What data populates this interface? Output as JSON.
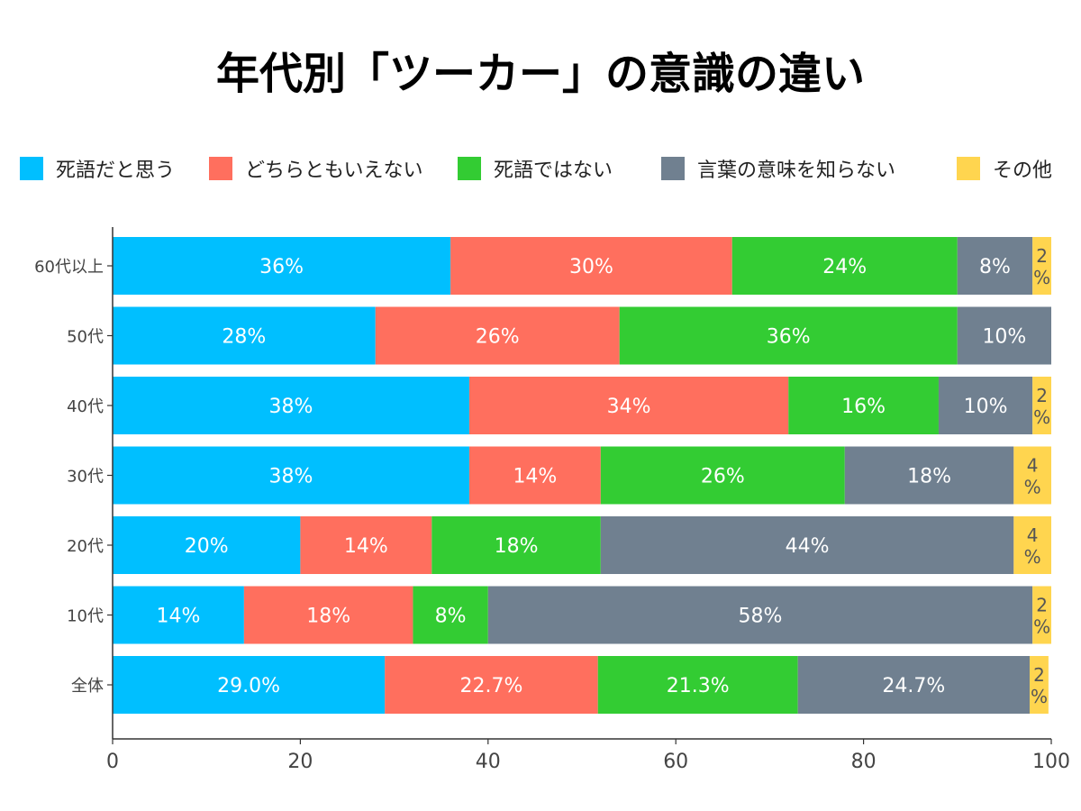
{
  "title": "年代別「ツーカー」の意識の違い",
  "legend": {
    "items": [
      {
        "label": "死語だと思う",
        "color": "#00BFFF"
      },
      {
        "label": "どちらともいえない",
        "color": "#FF6F5E"
      },
      {
        "label": "死語ではない",
        "color": "#33CC33"
      },
      {
        "label": "言葉の意味を知らない",
        "color": "#708090"
      },
      {
        "label": "その他",
        "color": "#FFD54F"
      }
    ]
  },
  "chart_data": {
    "type": "bar",
    "orientation": "horizontal",
    "stacked": true,
    "title": "年代別「ツーカー」の意識の違い",
    "categories": [
      "60代以上",
      "50代",
      "40代",
      "30代",
      "20代",
      "10代",
      "全体"
    ],
    "series": [
      {
        "name": "死語だと思う",
        "color": "#00BFFF",
        "values": [
          36,
          28,
          38,
          38,
          20,
          14,
          29.0
        ],
        "labels": [
          "36%",
          "28%",
          "38%",
          "38%",
          "20%",
          "14%",
          "29.0%"
        ]
      },
      {
        "name": "どちらともいえない",
        "color": "#FF6F5E",
        "values": [
          30,
          26,
          34,
          14,
          14,
          18,
          22.7
        ],
        "labels": [
          "30%",
          "26%",
          "34%",
          "14%",
          "14%",
          "18%",
          "22.7%"
        ]
      },
      {
        "name": "死語ではない",
        "color": "#33CC33",
        "values": [
          24,
          36,
          16,
          26,
          18,
          8,
          21.3
        ],
        "labels": [
          "24%",
          "36%",
          "16%",
          "26%",
          "18%",
          "8%",
          "21.3%"
        ]
      },
      {
        "name": "言葉の意味を知らない",
        "color": "#708090",
        "values": [
          8,
          10,
          10,
          18,
          44,
          58,
          24.7
        ],
        "labels": [
          "8%",
          "10%",
          "10%",
          "18%",
          "44%",
          "58%",
          "24.7%"
        ]
      },
      {
        "name": "その他",
        "color": "#FFD54F",
        "values": [
          2,
          0,
          2,
          4,
          4,
          2,
          2
        ],
        "labels": [
          "2%",
          "",
          "2%",
          "4%",
          "4%",
          "2%",
          "2%"
        ]
      }
    ],
    "xlim": [
      0,
      100
    ],
    "xticks": [
      0,
      20,
      40,
      60,
      80,
      100
    ],
    "xlabel": "",
    "ylabel": "",
    "grid": false,
    "legend_position": "top"
  }
}
